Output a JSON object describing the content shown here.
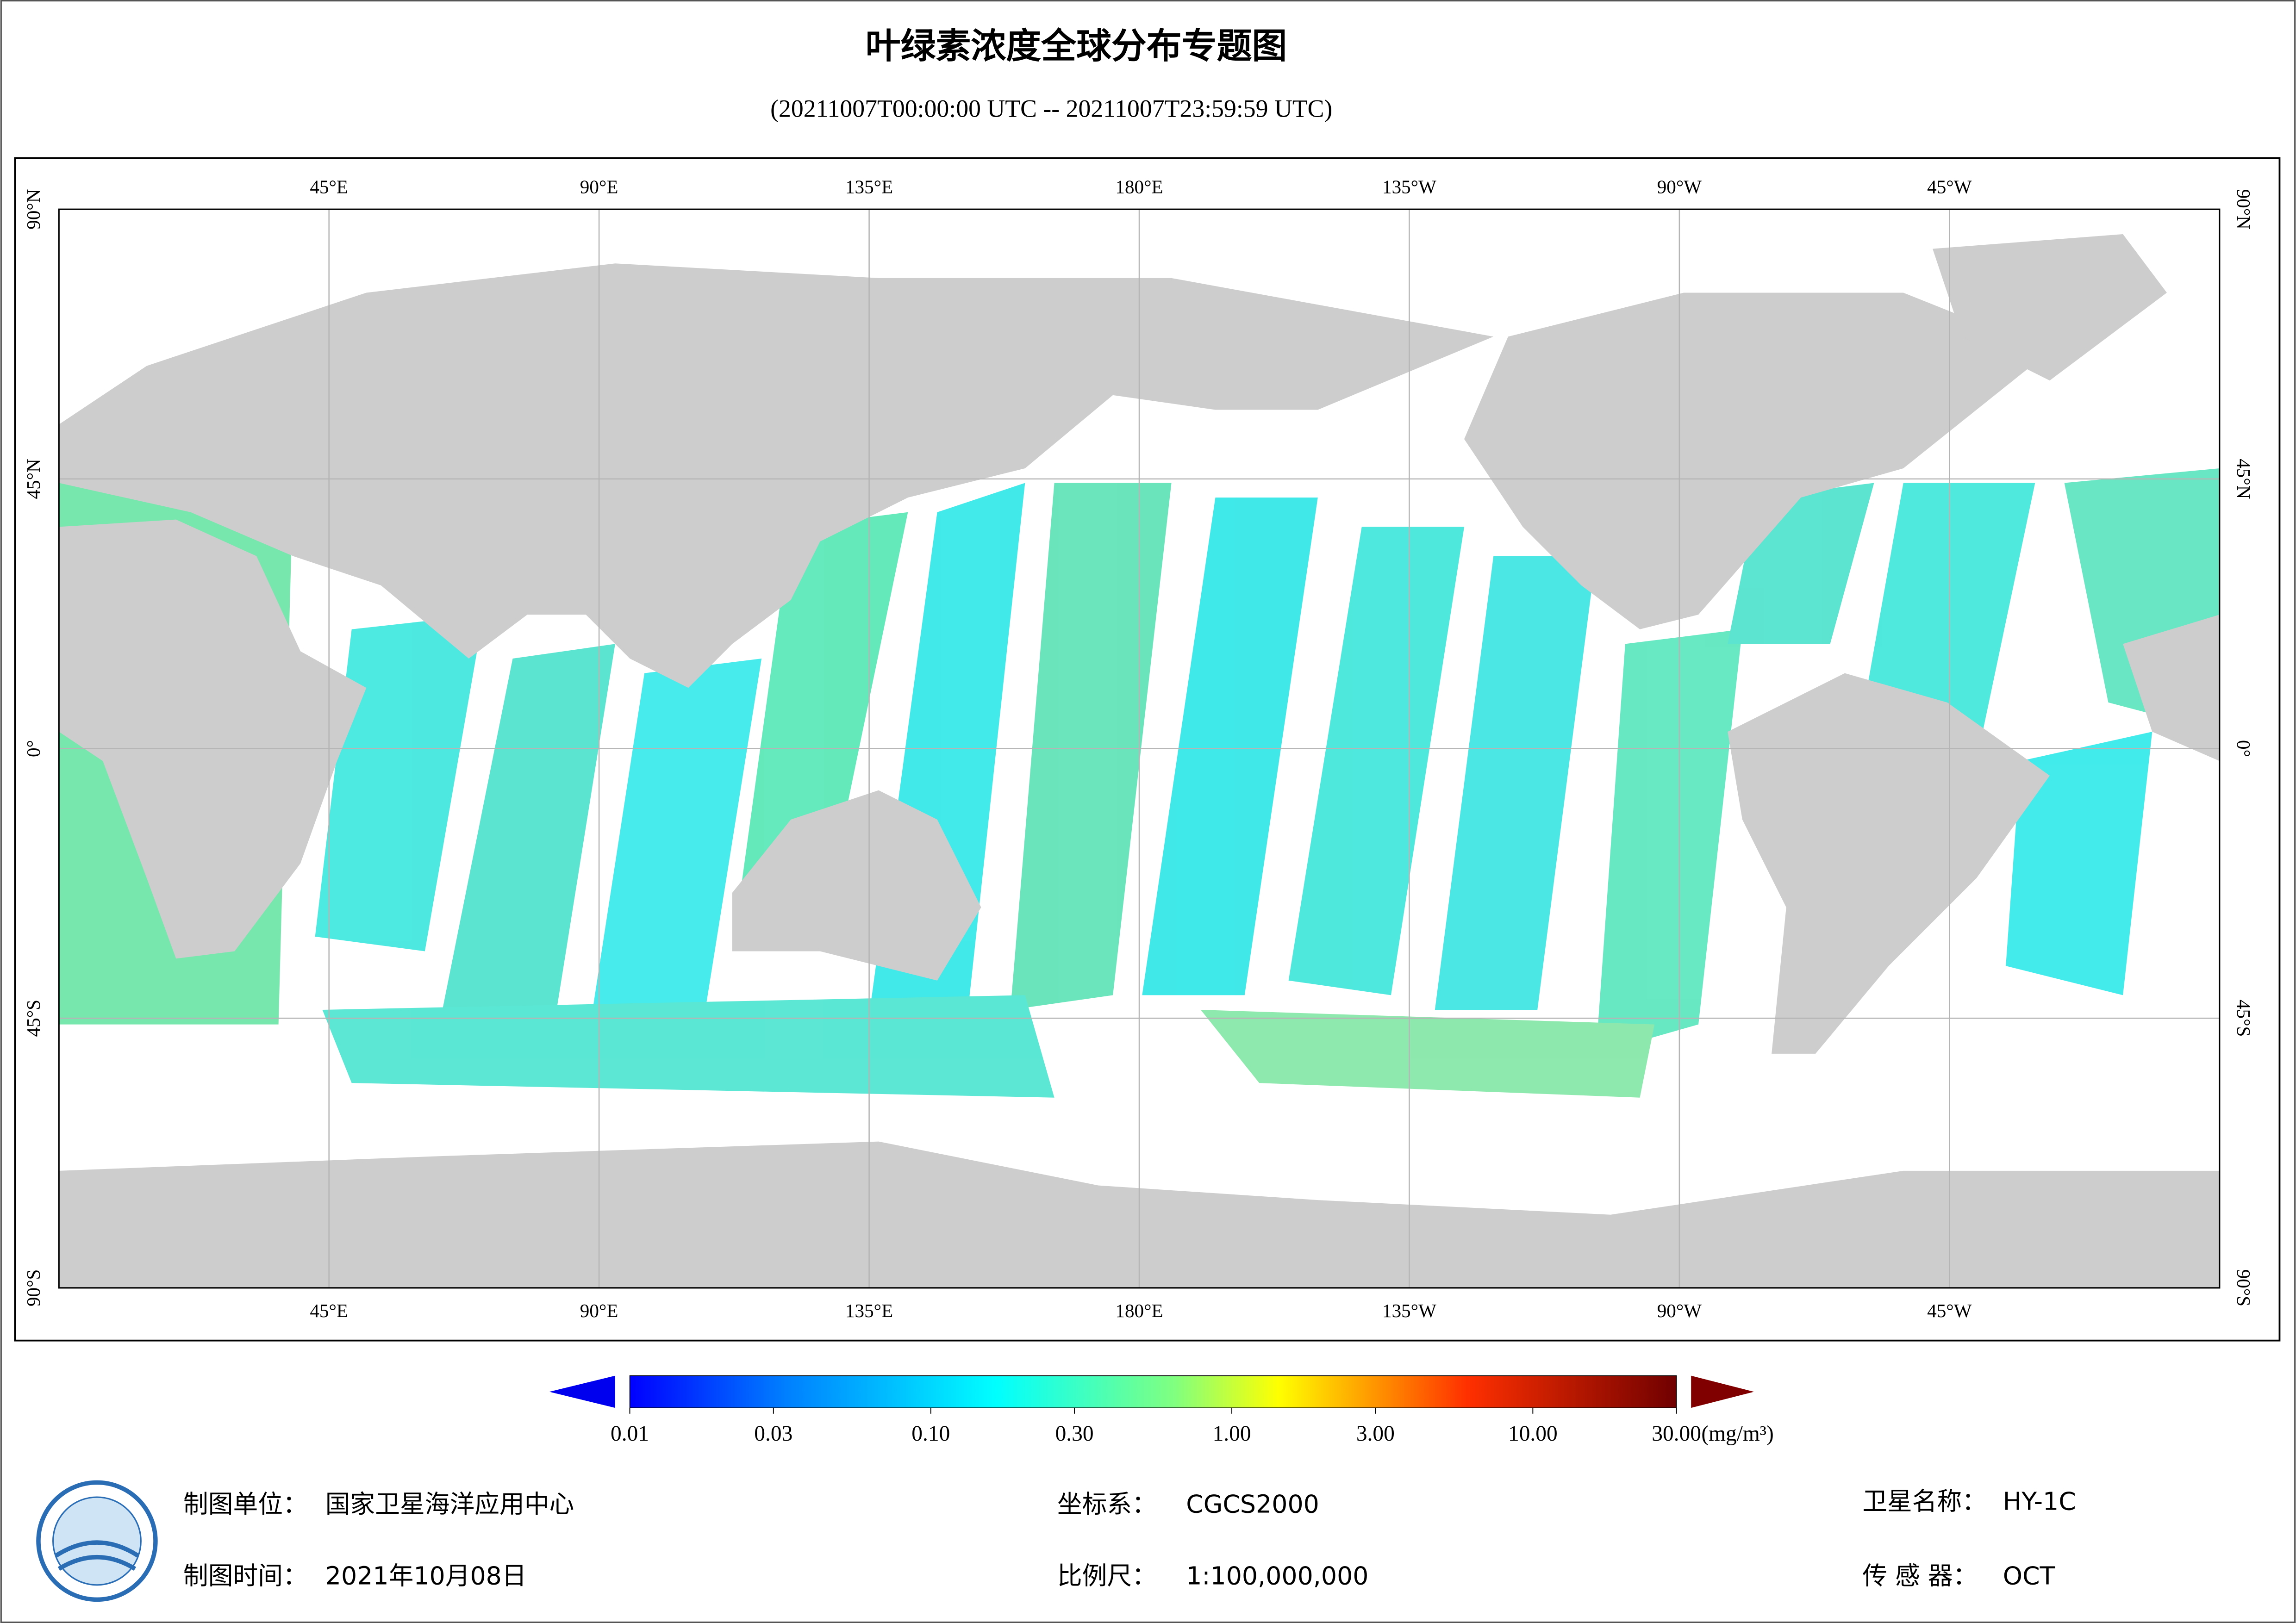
{
  "header": {
    "title": "叶绿素浓度全球分布专题图",
    "subtitle": "(20211007T00:00:00 UTC -- 20211007T23:59:59 UTC)"
  },
  "map": {
    "longitude_labels": [
      "45°E",
      "90°E",
      "135°E",
      "180°E",
      "135°W",
      "90°W",
      "45°W"
    ],
    "latitude_labels": [
      "90°N",
      "45°N",
      "0°",
      "45°S",
      "90°S"
    ]
  },
  "colorbar": {
    "range": [
      0.01,
      30
    ],
    "log_scale": true,
    "ticks": [
      0.01,
      0.03,
      {
        "value": 0.1,
        "label": "0.10"
      },
      {
        "value": 0.3,
        "label": "0.30"
      },
      {
        "value": 1,
        "label": "1.00"
      },
      {
        "value": 3,
        "label": "3.00"
      },
      {
        "value": 10,
        "label": "10.00"
      },
      {
        "value": 30,
        "label": "30.00"
      }
    ],
    "unit": "(mg/m³)"
  },
  "footer": {
    "unit_label": "制图单位：",
    "unit_value": "国家卫星海洋应用中心",
    "date_label": "制图时间：",
    "date_value": "2021年10月08日",
    "crs_label": "坐标系：",
    "crs_value": "CGCS2000",
    "scale_label": "比例尺：",
    "scale_value": "1:100,000,000",
    "satellite_label": "卫星名称：",
    "satellite_value": "HY-1C",
    "sensor_label": "传 感 器：",
    "sensor_value": "OCT"
  }
}
